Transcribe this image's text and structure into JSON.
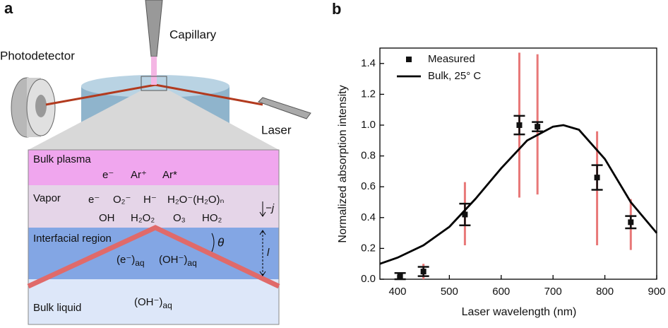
{
  "diagram": {
    "label": "a",
    "photodetector": "Photodetector",
    "capillary": "Capillary",
    "laser": "Laser",
    "bulk_plasma": {
      "title": "Bulk plasma",
      "species": [
        "e⁻",
        "Ar⁺",
        "Ar*"
      ]
    },
    "vapor": {
      "title": "Vapor",
      "species": [
        "e⁻",
        "O₂⁻",
        "H⁻",
        "H₂O⁻(H₂O)ₙ",
        "OH",
        "H₂O₂",
        "O₃",
        "HO₂"
      ],
      "flux": "−j"
    },
    "interfacial": {
      "title": "Interfacial region",
      "angle": "θ",
      "depth": "l",
      "species": [
        {
          "base": "(e⁻)",
          "sub": "aq"
        },
        {
          "base": "(OH⁻)",
          "sub": "aq"
        }
      ]
    },
    "bulk_liquid": {
      "title": "Bulk liquid",
      "species": [
        {
          "base": "(OH⁻)",
          "sub": "aq"
        }
      ]
    }
  },
  "chart_data": {
    "type": "scatter",
    "label": "b",
    "xlabel": "Laser wavelength (nm)",
    "ylabel": "Normalized absorption intensity",
    "xlim": [
      366,
      900
    ],
    "ylim": [
      0,
      1.5
    ],
    "xticks": [
      400,
      500,
      600,
      700,
      800,
      900
    ],
    "yticks": [
      {
        "value": 0,
        "label": "0.0"
      },
      0.2,
      0.4,
      0.6,
      0.8,
      {
        "value": 1,
        "label": "1.0"
      },
      1.2,
      1.4
    ],
    "series": [
      {
        "name": "Measured",
        "color": "#111111",
        "range_color": "#e87878",
        "x": [
          405,
          450,
          530,
          635,
          670,
          785,
          850
        ],
        "values": [
          0.02,
          0.05,
          0.42,
          1.0,
          0.99,
          0.66,
          0.37
        ],
        "errors": [
          0.02,
          0.03,
          0.07,
          0.06,
          0.03,
          0.08,
          0.04
        ],
        "range_low": [
          0,
          0,
          0.22,
          0.53,
          0.55,
          0.22,
          0.19
        ],
        "range_high": [
          0.03,
          0.1,
          0.63,
          1.47,
          1.46,
          0.96,
          0.52
        ]
      },
      {
        "name": "Bulk, 25° C",
        "color": "#000000",
        "type": "line",
        "x": [
          366,
          400,
          450,
          500,
          550,
          600,
          650,
          700,
          720,
          750,
          800,
          850,
          900
        ],
        "values": [
          0.1,
          0.14,
          0.22,
          0.34,
          0.52,
          0.72,
          0.9,
          0.99,
          1.0,
          0.97,
          0.78,
          0.5,
          0.3
        ]
      }
    ]
  }
}
